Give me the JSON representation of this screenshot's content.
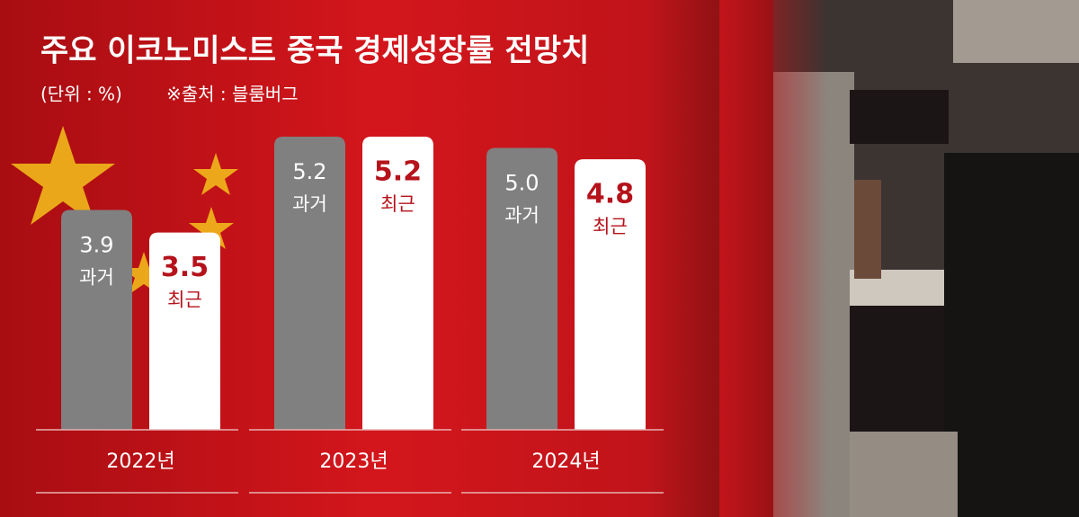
{
  "chart_data": {
    "type": "bar",
    "title": "주요 이코노미스트 중국 경제성장률 전망치",
    "subtitle": "(단위 : %)",
    "source": "※출처 : 블룸버그",
    "categories": [
      "2022년",
      "2023년",
      "2024년"
    ],
    "series": [
      {
        "name": "과거",
        "color": "#808080",
        "values": [
          3.9,
          5.2,
          5.0
        ],
        "value_labels": [
          "3.9",
          "5.2",
          "5.0"
        ]
      },
      {
        "name": "최근",
        "color": "#ffffff",
        "values": [
          3.5,
          5.2,
          4.8
        ],
        "value_labels": [
          "3.5",
          "5.2",
          "4.8"
        ]
      }
    ]
  }
}
